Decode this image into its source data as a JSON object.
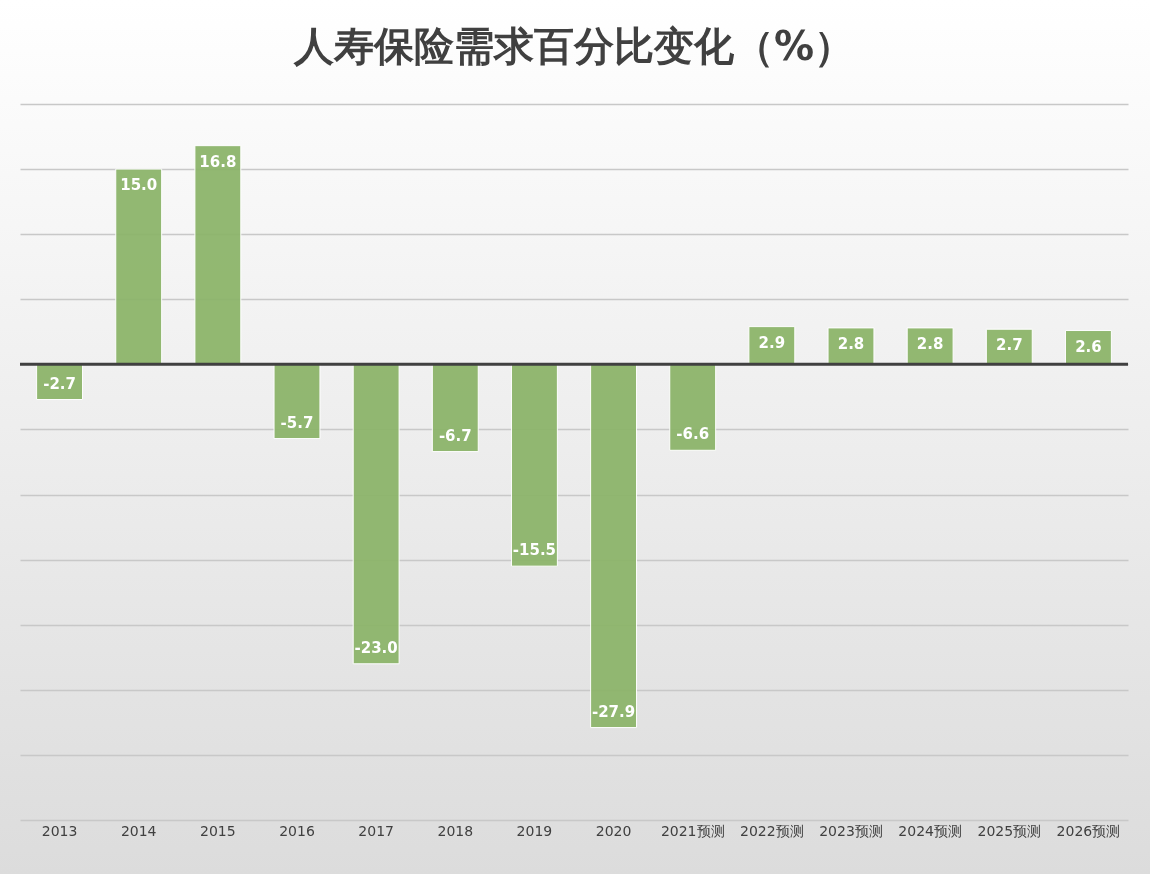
{
  "chart_data": {
    "type": "bar",
    "title": "人寿保险需求百分比变化（%）",
    "categories": [
      "2013",
      "2014",
      "2015",
      "2016",
      "2017",
      "2018",
      "2019",
      "2020",
      "2021预测",
      "2022预测",
      "2023预测",
      "2024预测",
      "2025预测",
      "2026预测"
    ],
    "values": [
      -2.7,
      15.0,
      16.8,
      -5.7,
      -23.0,
      -6.7,
      -15.5,
      -27.9,
      -6.6,
      2.9,
      2.8,
      2.8,
      2.7,
      2.6
    ],
    "value_labels": [
      "-2.7",
      "15.0",
      "16.8",
      "-5.7",
      "-23.0",
      "-6.7",
      "-15.5",
      "-27.9",
      "-6.6",
      "2.9",
      "2.8",
      "2.8",
      "2.7",
      "2.6"
    ],
    "color": "#8db56b",
    "ylim": [
      -35,
      20
    ],
    "yticks": [
      {
        "value": -35,
        "label": null
      },
      {
        "value": -30,
        "label": null
      },
      {
        "value": -25,
        "label": null
      },
      {
        "value": -20,
        "label": null
      },
      {
        "value": -15,
        "label": null
      },
      {
        "value": -10,
        "label": null
      },
      {
        "value": -5,
        "label": null
      },
      {
        "value": 0,
        "label": null
      },
      {
        "value": 5,
        "label": null
      },
      {
        "value": 10,
        "label": null
      },
      {
        "value": 15,
        "label": null
      },
      {
        "value": 20,
        "label": null
      }
    ],
    "grid": "y",
    "tick_labels": "x"
  }
}
